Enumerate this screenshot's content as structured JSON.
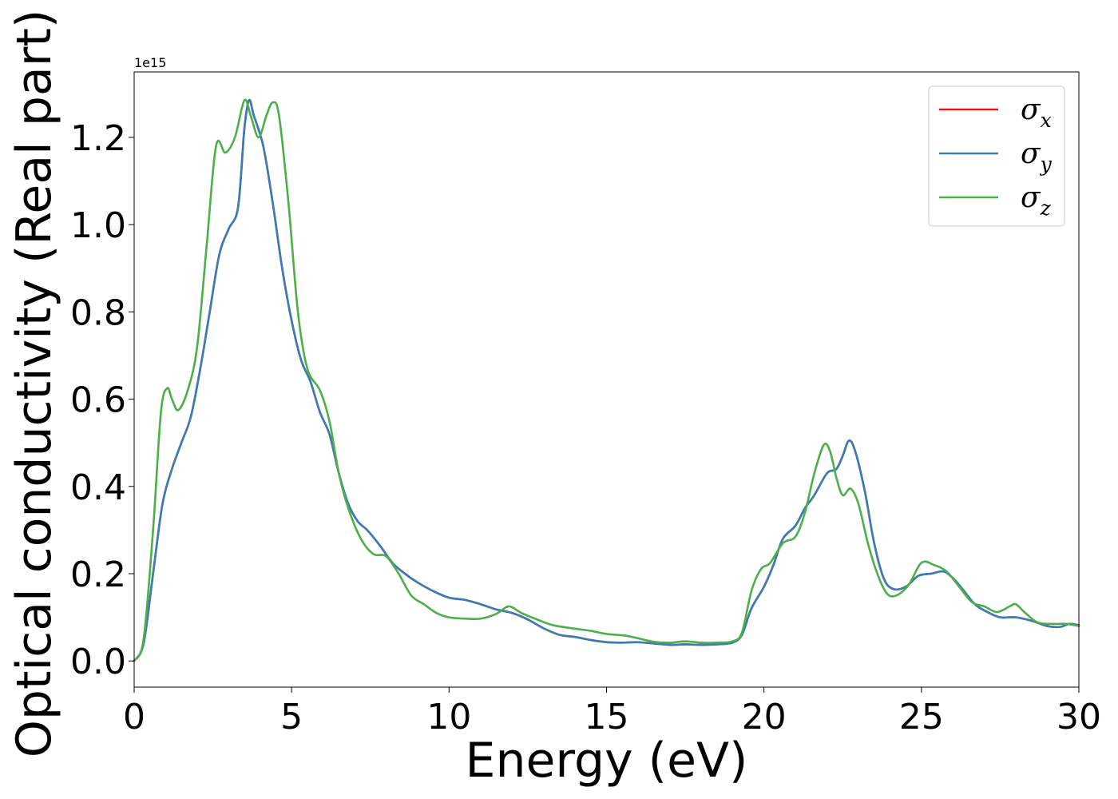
{
  "chart_data": {
    "type": "line",
    "xlabel": "Energy (eV)",
    "ylabel": "Optical conductivity (Real part)",
    "y_offset_label": "1e15",
    "xlim": [
      0,
      30
    ],
    "ylim": [
      -0.06,
      1.35
    ],
    "x_ticks": [
      0,
      5,
      10,
      15,
      20,
      25,
      30
    ],
    "x_tick_labels": [
      "0",
      "5",
      "10",
      "15",
      "20",
      "25",
      "30"
    ],
    "y_ticks": [
      0.0,
      0.2,
      0.4,
      0.6,
      0.8,
      1.0,
      1.2
    ],
    "y_tick_labels": [
      "0.0",
      "0.2",
      "0.4",
      "0.6",
      "0.8",
      "1.0",
      "1.2"
    ],
    "grid": false,
    "legend_position": "top-right",
    "series": [
      {
        "name": "σx",
        "symbol": "σ",
        "subscript": "x",
        "color": "#e41a1c",
        "points": [
          [
            0,
            0
          ],
          [
            0.3,
            0.04
          ],
          [
            0.6,
            0.2
          ],
          [
            0.9,
            0.36
          ],
          [
            1.2,
            0.44
          ],
          [
            1.5,
            0.5
          ],
          [
            1.8,
            0.56
          ],
          [
            2.1,
            0.67
          ],
          [
            2.4,
            0.8
          ],
          [
            2.7,
            0.93
          ],
          [
            3.0,
            0.99
          ],
          [
            3.3,
            1.04
          ],
          [
            3.5,
            1.22
          ],
          [
            3.65,
            1.285
          ],
          [
            3.8,
            1.25
          ],
          [
            4.1,
            1.18
          ],
          [
            4.4,
            1.05
          ],
          [
            4.7,
            0.9
          ],
          [
            5.0,
            0.78
          ],
          [
            5.3,
            0.69
          ],
          [
            5.6,
            0.64
          ],
          [
            5.9,
            0.57
          ],
          [
            6.2,
            0.52
          ],
          [
            6.5,
            0.43
          ],
          [
            6.8,
            0.36
          ],
          [
            7.1,
            0.32
          ],
          [
            7.4,
            0.3
          ],
          [
            7.8,
            0.265
          ],
          [
            8.2,
            0.225
          ],
          [
            8.6,
            0.2
          ],
          [
            9.0,
            0.18
          ],
          [
            9.5,
            0.16
          ],
          [
            10.0,
            0.145
          ],
          [
            10.5,
            0.14
          ],
          [
            11.0,
            0.13
          ],
          [
            11.5,
            0.118
          ],
          [
            12.0,
            0.11
          ],
          [
            12.5,
            0.095
          ],
          [
            13.0,
            0.075
          ],
          [
            13.5,
            0.06
          ],
          [
            14.0,
            0.055
          ],
          [
            14.5,
            0.048
          ],
          [
            15.0,
            0.043
          ],
          [
            15.5,
            0.042
          ],
          [
            16.0,
            0.043
          ],
          [
            16.5,
            0.04
          ],
          [
            17.0,
            0.037
          ],
          [
            17.5,
            0.038
          ],
          [
            18.0,
            0.037
          ],
          [
            18.5,
            0.038
          ],
          [
            19.0,
            0.042
          ],
          [
            19.3,
            0.06
          ],
          [
            19.6,
            0.12
          ],
          [
            20.0,
            0.17
          ],
          [
            20.3,
            0.22
          ],
          [
            20.6,
            0.28
          ],
          [
            21.0,
            0.31
          ],
          [
            21.3,
            0.35
          ],
          [
            21.6,
            0.38
          ],
          [
            22.0,
            0.43
          ],
          [
            22.3,
            0.44
          ],
          [
            22.5,
            0.47
          ],
          [
            22.7,
            0.505
          ],
          [
            22.9,
            0.48
          ],
          [
            23.2,
            0.39
          ],
          [
            23.5,
            0.27
          ],
          [
            23.8,
            0.19
          ],
          [
            24.1,
            0.165
          ],
          [
            24.5,
            0.17
          ],
          [
            24.9,
            0.195
          ],
          [
            25.3,
            0.2
          ],
          [
            25.7,
            0.205
          ],
          [
            26.0,
            0.19
          ],
          [
            26.3,
            0.165
          ],
          [
            26.7,
            0.13
          ],
          [
            27.1,
            0.112
          ],
          [
            27.5,
            0.1
          ],
          [
            28.0,
            0.1
          ],
          [
            28.5,
            0.092
          ],
          [
            29.0,
            0.08
          ],
          [
            29.4,
            0.078
          ],
          [
            29.7,
            0.085
          ],
          [
            30.0,
            0.082
          ]
        ]
      },
      {
        "name": "σy",
        "symbol": "σ",
        "subscript": "y",
        "color": "#377eb8",
        "points": [
          [
            0,
            0
          ],
          [
            0.3,
            0.04
          ],
          [
            0.6,
            0.2
          ],
          [
            0.9,
            0.36
          ],
          [
            1.2,
            0.44
          ],
          [
            1.5,
            0.5
          ],
          [
            1.8,
            0.56
          ],
          [
            2.1,
            0.67
          ],
          [
            2.4,
            0.8
          ],
          [
            2.7,
            0.93
          ],
          [
            3.0,
            0.99
          ],
          [
            3.3,
            1.04
          ],
          [
            3.5,
            1.22
          ],
          [
            3.65,
            1.285
          ],
          [
            3.8,
            1.25
          ],
          [
            4.1,
            1.18
          ],
          [
            4.4,
            1.05
          ],
          [
            4.7,
            0.9
          ],
          [
            5.0,
            0.78
          ],
          [
            5.3,
            0.69
          ],
          [
            5.6,
            0.64
          ],
          [
            5.9,
            0.57
          ],
          [
            6.2,
            0.52
          ],
          [
            6.5,
            0.43
          ],
          [
            6.8,
            0.36
          ],
          [
            7.1,
            0.32
          ],
          [
            7.4,
            0.3
          ],
          [
            7.8,
            0.265
          ],
          [
            8.2,
            0.225
          ],
          [
            8.6,
            0.2
          ],
          [
            9.0,
            0.18
          ],
          [
            9.5,
            0.16
          ],
          [
            10.0,
            0.145
          ],
          [
            10.5,
            0.14
          ],
          [
            11.0,
            0.13
          ],
          [
            11.5,
            0.118
          ],
          [
            12.0,
            0.11
          ],
          [
            12.5,
            0.095
          ],
          [
            13.0,
            0.075
          ],
          [
            13.5,
            0.06
          ],
          [
            14.0,
            0.055
          ],
          [
            14.5,
            0.048
          ],
          [
            15.0,
            0.043
          ],
          [
            15.5,
            0.042
          ],
          [
            16.0,
            0.043
          ],
          [
            16.5,
            0.04
          ],
          [
            17.0,
            0.037
          ],
          [
            17.5,
            0.038
          ],
          [
            18.0,
            0.037
          ],
          [
            18.5,
            0.038
          ],
          [
            19.0,
            0.042
          ],
          [
            19.3,
            0.06
          ],
          [
            19.6,
            0.12
          ],
          [
            20.0,
            0.17
          ],
          [
            20.3,
            0.22
          ],
          [
            20.6,
            0.28
          ],
          [
            21.0,
            0.31
          ],
          [
            21.3,
            0.35
          ],
          [
            21.6,
            0.38
          ],
          [
            22.0,
            0.43
          ],
          [
            22.3,
            0.44
          ],
          [
            22.5,
            0.47
          ],
          [
            22.7,
            0.505
          ],
          [
            22.9,
            0.48
          ],
          [
            23.2,
            0.39
          ],
          [
            23.5,
            0.27
          ],
          [
            23.8,
            0.19
          ],
          [
            24.1,
            0.165
          ],
          [
            24.5,
            0.17
          ],
          [
            24.9,
            0.195
          ],
          [
            25.3,
            0.2
          ],
          [
            25.7,
            0.205
          ],
          [
            26.0,
            0.19
          ],
          [
            26.3,
            0.165
          ],
          [
            26.7,
            0.13
          ],
          [
            27.1,
            0.112
          ],
          [
            27.5,
            0.1
          ],
          [
            28.0,
            0.1
          ],
          [
            28.5,
            0.092
          ],
          [
            29.0,
            0.08
          ],
          [
            29.4,
            0.078
          ],
          [
            29.7,
            0.085
          ],
          [
            30.0,
            0.082
          ]
        ]
      },
      {
        "name": "σz",
        "symbol": "σ",
        "subscript": "z",
        "color": "#4daf4a",
        "points": [
          [
            0,
            0
          ],
          [
            0.3,
            0.05
          ],
          [
            0.6,
            0.3
          ],
          [
            0.85,
            0.57
          ],
          [
            1.05,
            0.625
          ],
          [
            1.2,
            0.6
          ],
          [
            1.4,
            0.575
          ],
          [
            1.7,
            0.62
          ],
          [
            2.0,
            0.72
          ],
          [
            2.3,
            0.95
          ],
          [
            2.6,
            1.18
          ],
          [
            2.9,
            1.165
          ],
          [
            3.2,
            1.2
          ],
          [
            3.5,
            1.285
          ],
          [
            3.7,
            1.25
          ],
          [
            3.95,
            1.2
          ],
          [
            4.2,
            1.25
          ],
          [
            4.4,
            1.28
          ],
          [
            4.6,
            1.25
          ],
          [
            4.9,
            1.05
          ],
          [
            5.2,
            0.8
          ],
          [
            5.5,
            0.67
          ],
          [
            5.9,
            0.62
          ],
          [
            6.2,
            0.55
          ],
          [
            6.5,
            0.43
          ],
          [
            6.8,
            0.35
          ],
          [
            7.2,
            0.28
          ],
          [
            7.6,
            0.245
          ],
          [
            8.0,
            0.24
          ],
          [
            8.4,
            0.2
          ],
          [
            8.8,
            0.15
          ],
          [
            9.2,
            0.13
          ],
          [
            9.6,
            0.11
          ],
          [
            10.0,
            0.1
          ],
          [
            10.5,
            0.097
          ],
          [
            11.0,
            0.097
          ],
          [
            11.5,
            0.108
          ],
          [
            11.9,
            0.125
          ],
          [
            12.3,
            0.11
          ],
          [
            12.8,
            0.095
          ],
          [
            13.3,
            0.082
          ],
          [
            14.0,
            0.074
          ],
          [
            14.5,
            0.069
          ],
          [
            15.0,
            0.062
          ],
          [
            15.6,
            0.058
          ],
          [
            16.0,
            0.052
          ],
          [
            16.5,
            0.044
          ],
          [
            17.0,
            0.042
          ],
          [
            17.5,
            0.045
          ],
          [
            18.0,
            0.042
          ],
          [
            18.5,
            0.042
          ],
          [
            19.0,
            0.045
          ],
          [
            19.3,
            0.065
          ],
          [
            19.6,
            0.16
          ],
          [
            19.9,
            0.21
          ],
          [
            20.2,
            0.225
          ],
          [
            20.6,
            0.27
          ],
          [
            21.0,
            0.285
          ],
          [
            21.3,
            0.34
          ],
          [
            21.6,
            0.43
          ],
          [
            21.9,
            0.495
          ],
          [
            22.1,
            0.48
          ],
          [
            22.3,
            0.42
          ],
          [
            22.5,
            0.38
          ],
          [
            22.75,
            0.395
          ],
          [
            23.0,
            0.36
          ],
          [
            23.3,
            0.27
          ],
          [
            23.6,
            0.2
          ],
          [
            23.9,
            0.155
          ],
          [
            24.2,
            0.15
          ],
          [
            24.6,
            0.175
          ],
          [
            25.0,
            0.225
          ],
          [
            25.4,
            0.22
          ],
          [
            25.8,
            0.205
          ],
          [
            26.2,
            0.17
          ],
          [
            26.6,
            0.135
          ],
          [
            27.0,
            0.125
          ],
          [
            27.4,
            0.112
          ],
          [
            27.8,
            0.125
          ],
          [
            28.0,
            0.13
          ],
          [
            28.3,
            0.11
          ],
          [
            28.7,
            0.088
          ],
          [
            29.2,
            0.085
          ],
          [
            29.6,
            0.085
          ],
          [
            30.0,
            0.08
          ]
        ]
      }
    ]
  }
}
